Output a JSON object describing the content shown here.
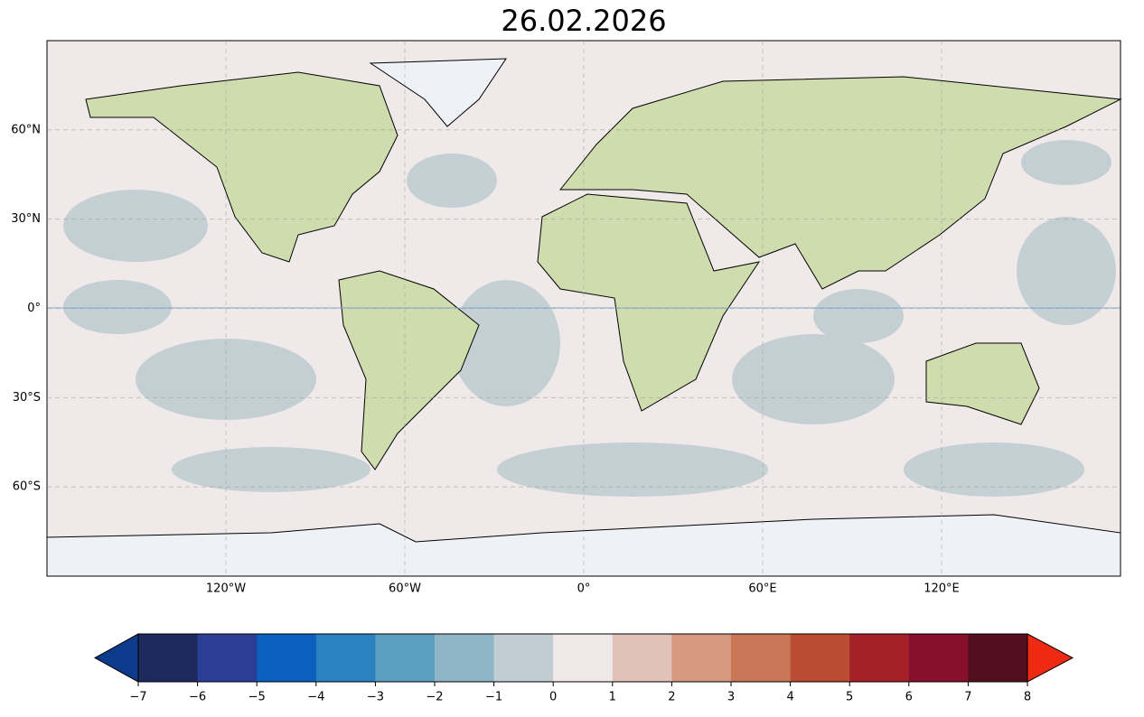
{
  "map": {
    "title": "26.02.2026",
    "xlim": [
      -180,
      180
    ],
    "ylim": [
      -90,
      90
    ],
    "xticks": [
      {
        "value": -120,
        "label": "120°W"
      },
      {
        "value": -60,
        "label": "60°W"
      },
      {
        "value": 0,
        "label": "0°"
      },
      {
        "value": 60,
        "label": "60°E"
      },
      {
        "value": 120,
        "label": "120°E"
      }
    ],
    "yticks": [
      {
        "value": 60,
        "label": "60°N"
      },
      {
        "value": 30,
        "label": "30°N"
      },
      {
        "value": 0,
        "label": "0°"
      },
      {
        "value": -30,
        "label": "30°S"
      },
      {
        "value": -60,
        "label": "60°S"
      }
    ],
    "grid": true,
    "colorbar": {
      "lim": [
        -7,
        8
      ],
      "ticks": [
        {
          "value": -7,
          "label": "−7"
        },
        {
          "value": -6,
          "label": "−6"
        },
        {
          "value": -5,
          "label": "−5"
        },
        {
          "value": -4,
          "label": "−4"
        },
        {
          "value": -3,
          "label": "−3"
        },
        {
          "value": -2,
          "label": "−2"
        },
        {
          "value": -1,
          "label": "−1"
        },
        0,
        1,
        2,
        3,
        4,
        5,
        6,
        7,
        8
      ],
      "colors": [
        "#1f2a5c",
        "#2a3e96",
        "#0b5fbe",
        "#2c82c0",
        "#5ba0be",
        "#8fb6c6",
        "#c0cdd2",
        "#efe9e9",
        "#e2c1b8",
        "#d6987f",
        "#c97756",
        "#bb4c34",
        "#a42127",
        "#86102b",
        "#530f1e"
      ],
      "under_color": "#0c3b8c",
      "over_color": "#ef2a12"
    }
  }
}
